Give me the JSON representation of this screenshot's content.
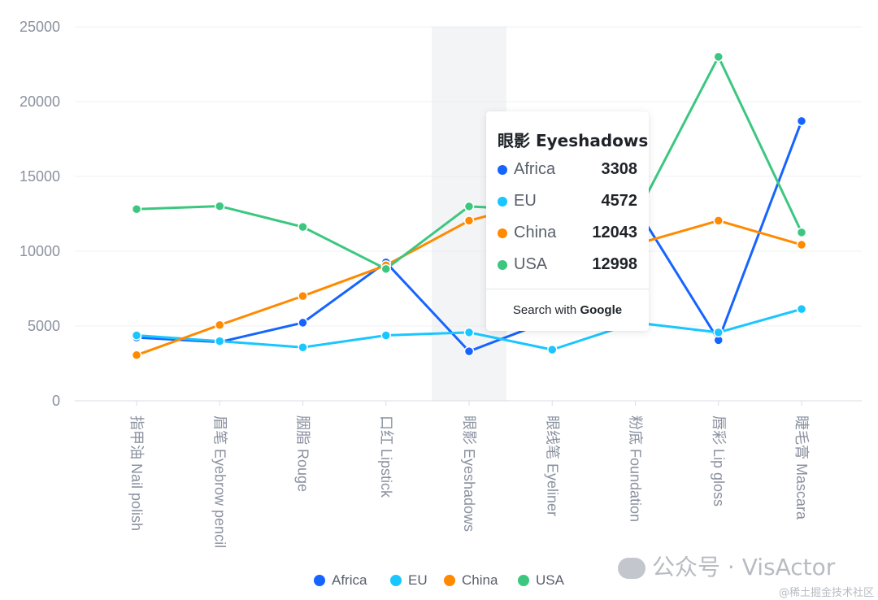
{
  "chart_data": {
    "type": "line",
    "categories": [
      "指甲油 Nail polish",
      "眉笔 Eyebrow pencil",
      "胭脂 Rouge",
      "口红 Lipstick",
      "眼影 Eyeshadows",
      "眼线笔 Eyeliner",
      "粉底 Foundation",
      "唇彩 Lip gloss",
      "睫毛膏 Mascara"
    ],
    "series": [
      {
        "name": "Africa",
        "color": "#1664ff",
        "values": [
          4229,
          3932,
          5221,
          9256,
          3308,
          5432,
          13000,
          4055,
          18700
        ]
      },
      {
        "name": "EU",
        "color": "#1ac6ff",
        "values": [
          4376,
          3987,
          3574,
          4376,
          4572,
          3417,
          5231,
          4572,
          6134
        ]
      },
      {
        "name": "China",
        "color": "#ff8a00",
        "values": [
          3054,
          5067,
          7004,
          9054,
          12043,
          13500,
          10453,
          12043,
          10432
        ]
      },
      {
        "name": "USA",
        "color": "#3cc780",
        "values": [
          12814,
          13012,
          11624,
          8814,
          12998,
          12700,
          12300,
          22998,
          11259
        ]
      }
    ],
    "ylim": [
      0,
      25000
    ],
    "yticks": [
      "0",
      "5000",
      "10000",
      "15000",
      "20000",
      "25000"
    ],
    "grid": true,
    "legend": "bottom",
    "highlighted_category_index": 4
  },
  "tooltip": {
    "title": "眼影 Eyeshadows",
    "rows": [
      {
        "name": "Africa",
        "value": "3308"
      },
      {
        "name": "EU",
        "value": "4572"
      },
      {
        "name": "China",
        "value": "12043"
      },
      {
        "name": "USA",
        "value": "12998"
      }
    ],
    "search_prefix": "Search with ",
    "search_brand": "Google"
  },
  "legend_items": [
    "Africa",
    "EU",
    "China",
    "USA"
  ],
  "watermark": "公众号 · VisActor",
  "credit": "@稀土掘金技术社区"
}
